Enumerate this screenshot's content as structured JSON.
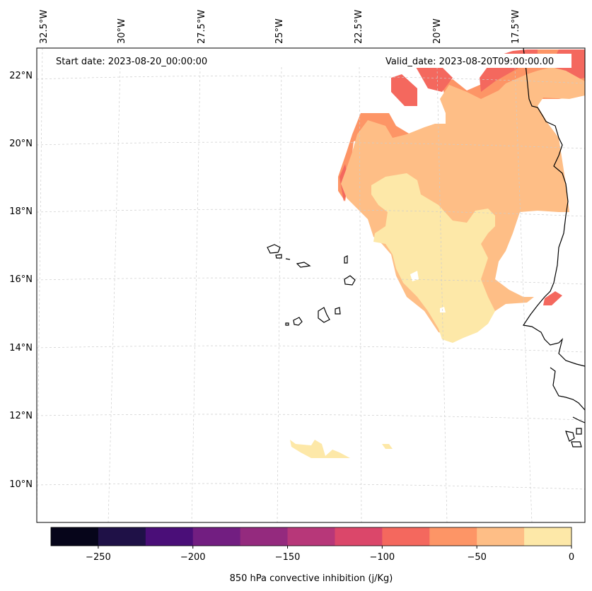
{
  "map": {
    "start_date_label": "Start date: 2023-08-20_00:00:00",
    "valid_date_label": "Valid_date: 2023-08-20T09:00:00.00",
    "lon_labels": [
      "32.5°W",
      "30°W",
      "27.5°W",
      "25°W",
      "22.5°W",
      "20°W",
      "17.5°W"
    ],
    "lat_labels": [
      "22°N",
      "20°N",
      "18°N",
      "16°N",
      "14°N",
      "12°N",
      "10°N"
    ],
    "colors": {
      "border": "#000000",
      "gridline": "#cccccc",
      "coast": "#000000"
    },
    "fields": {
      "c_0_25": "#fde8a8",
      "c_25_50": "#febe86",
      "c_50_75": "#fd9566",
      "c_75_100": "#f4685e"
    }
  },
  "colorbar": {
    "label": "850 hPa convective inhibition (j/Kg)",
    "range": [
      -275,
      0
    ],
    "tick_values": [
      -250,
      -200,
      -150,
      -100,
      -50,
      0
    ],
    "tick_labels": [
      "−250",
      "−200",
      "−150",
      "−100",
      "−50",
      "0"
    ],
    "bins": [
      {
        "from": -275,
        "to": -250,
        "color": "#06051a"
      },
      {
        "from": -250,
        "to": -225,
        "color": "#1f1147"
      },
      {
        "from": -225,
        "to": -200,
        "color": "#4a0e78"
      },
      {
        "from": -200,
        "to": -175,
        "color": "#721e81"
      },
      {
        "from": -175,
        "to": -150,
        "color": "#942a7e"
      },
      {
        "from": -150,
        "to": -125,
        "color": "#b73779"
      },
      {
        "from": -125,
        "to": -100,
        "color": "#db476a"
      },
      {
        "from": -100,
        "to": -75,
        "color": "#f4685e"
      },
      {
        "from": -75,
        "to": -50,
        "color": "#fd9566"
      },
      {
        "from": -50,
        "to": -25,
        "color": "#febe86"
      },
      {
        "from": -25,
        "to": 0,
        "color": "#fde8a8"
      }
    ]
  }
}
